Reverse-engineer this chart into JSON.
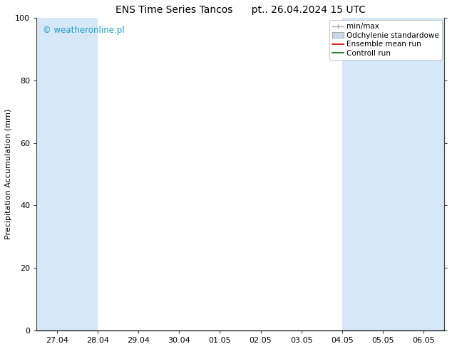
{
  "title": "ENS Time Series Tancos      pt.. 26.04.2024 15 UTC",
  "ylabel": "Precipitation Accumulation (mm)",
  "ylim": [
    0,
    100
  ],
  "yticks": [
    0,
    20,
    40,
    60,
    80,
    100
  ],
  "x_labels": [
    "27.04",
    "28.04",
    "29.04",
    "30.04",
    "01.05",
    "02.05",
    "03.05",
    "04.05",
    "05.05",
    "06.05"
  ],
  "x_tick_positions": [
    0,
    1,
    2,
    3,
    4,
    5,
    6,
    7,
    8,
    9
  ],
  "xlim": [
    -0.5,
    9.5
  ],
  "watermark": "© weatheronline.pl",
  "watermark_color": "#1a9dcc",
  "background_color": "#ffffff",
  "plot_bg_color": "#ffffff",
  "shaded_bands": [
    {
      "x_start": -0.5,
      "x_end": 1.0,
      "color": "#d6e8f7"
    },
    {
      "x_start": 1.0,
      "x_end": 2.0,
      "color": "#ffffff"
    },
    {
      "x_start": 2.0,
      "x_end": 7.0,
      "color": "#ffffff"
    },
    {
      "x_start": 7.0,
      "x_end": 8.0,
      "color": "#d6e8f7"
    },
    {
      "x_start": 8.0,
      "x_end": 9.0,
      "color": "#d6e8f7"
    },
    {
      "x_start": 9.0,
      "x_end": 9.5,
      "color": "#d6e8f7"
    }
  ],
  "legend_items": [
    {
      "label": "min/max",
      "color": "#aaaaaa",
      "type": "errorbar"
    },
    {
      "label": "Odchylenie standardowe",
      "color": "#c8daea",
      "type": "band"
    },
    {
      "label": "Ensemble mean run",
      "color": "#dd0000",
      "type": "line"
    },
    {
      "label": "Controll run",
      "color": "#006600",
      "type": "line"
    }
  ],
  "title_fontsize": 10,
  "axis_label_fontsize": 8,
  "tick_fontsize": 8,
  "legend_fontsize": 7.5,
  "watermark_fontsize": 8.5
}
